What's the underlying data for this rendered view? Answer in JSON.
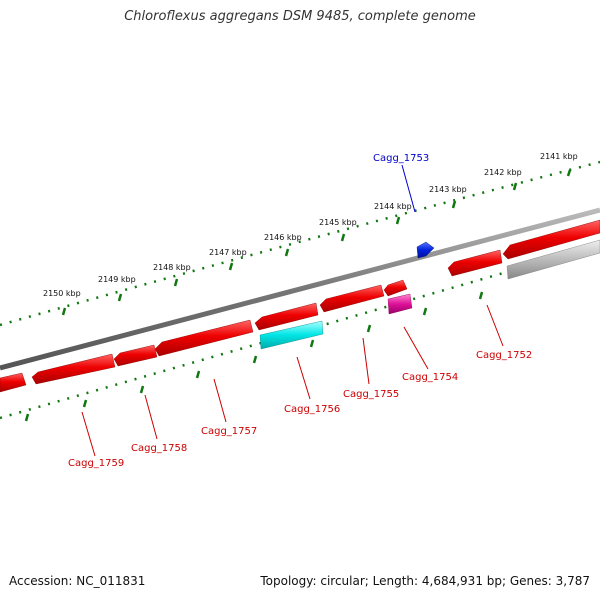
{
  "title": "Chloroflexus aggregans DSM 9485, complete genome",
  "footer": {
    "accession": "Accession: NC_011831",
    "topology": "Topology: circular; Length: 4,684,931 bp; Genes: 3,787"
  },
  "colors": {
    "forward_gene": "#ee0000",
    "reverse_gene": "#ee0000",
    "rna": "#dd1199",
    "other": "#00dddd",
    "pseudo": "#bbbbbb",
    "highlight": "#0022dd",
    "backbone": "#888888",
    "ticks": "#117711",
    "label_red": "#cc0000",
    "label_blue": "#0000cc"
  },
  "ruler_labels": [
    "2141 kbp",
    "2142 kbp",
    "2143 kbp",
    "2144 kbp",
    "2145 kbp",
    "2146 kbp",
    "2147 kbp",
    "2148 kbp",
    "2149 kbp",
    "2150 kbp"
  ],
  "gene_labels": [
    "Cagg_1753",
    "Cagg_1752",
    "Cagg_1754",
    "Cagg_1755",
    "Cagg_1756",
    "Cagg_1757",
    "Cagg_1758",
    "Cagg_1759"
  ]
}
